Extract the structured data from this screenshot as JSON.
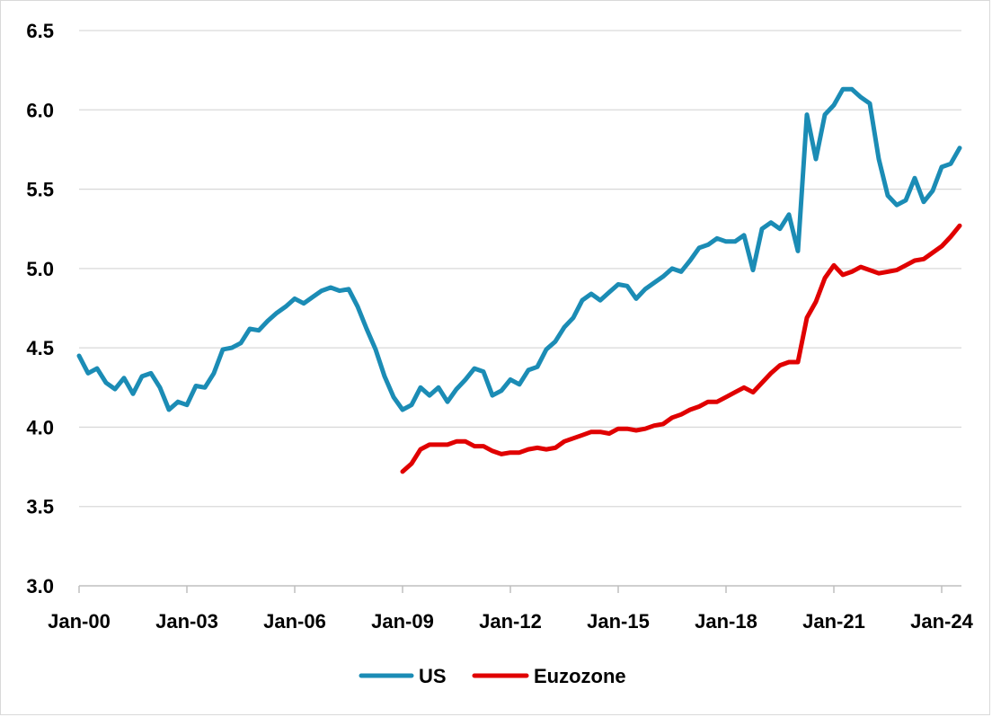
{
  "chart_data": {
    "type": "line",
    "title": "",
    "xlabel": "",
    "ylabel": "",
    "ylim": [
      3.0,
      6.5
    ],
    "yticks": [
      "3.0",
      "3.5",
      "4.0",
      "4.5",
      "5.0",
      "5.5",
      "6.0",
      "6.5"
    ],
    "xtick_labels": [
      "Jan-00",
      "Jan-03",
      "Jan-06",
      "Jan-09",
      "Jan-12",
      "Jan-15",
      "Jan-18",
      "Jan-21",
      "Jan-24"
    ],
    "x_unit": "quarter",
    "grid": "horizontal",
    "legend_position": "bottom",
    "x_start": "2000-Q1",
    "series": [
      {
        "name": "US",
        "color": "#1b8cb5",
        "values": [
          4.45,
          4.34,
          4.37,
          4.28,
          4.24,
          4.31,
          4.21,
          4.32,
          4.34,
          4.25,
          4.11,
          4.16,
          4.14,
          4.26,
          4.25,
          4.34,
          4.49,
          4.5,
          4.53,
          4.62,
          4.61,
          4.67,
          4.72,
          4.76,
          4.81,
          4.78,
          4.82,
          4.86,
          4.88,
          4.86,
          4.87,
          4.76,
          4.62,
          4.49,
          4.32,
          4.19,
          4.11,
          4.14,
          4.25,
          4.2,
          4.25,
          4.16,
          4.24,
          4.3,
          4.37,
          4.35,
          4.2,
          4.23,
          4.3,
          4.27,
          4.36,
          4.38,
          4.49,
          4.54,
          4.63,
          4.69,
          4.8,
          4.84,
          4.8,
          4.85,
          4.9,
          4.89,
          4.81,
          4.87,
          4.91,
          4.95,
          5.0,
          4.98,
          5.05,
          5.13,
          5.15,
          5.19,
          5.17,
          5.17,
          5.21,
          4.99,
          5.25,
          5.29,
          5.25,
          5.34,
          5.11,
          5.97,
          5.69,
          5.97,
          6.03,
          6.13,
          6.13,
          6.08,
          6.04,
          5.69,
          5.46,
          5.4,
          5.43,
          5.57,
          5.42,
          5.49,
          5.64,
          5.66,
          5.76
        ]
      },
      {
        "name": "Euzozone",
        "color": "#e00000",
        "start_index": 36,
        "values": [
          3.72,
          3.77,
          3.86,
          3.89,
          3.89,
          3.89,
          3.91,
          3.91,
          3.88,
          3.88,
          3.85,
          3.83,
          3.84,
          3.84,
          3.86,
          3.87,
          3.86,
          3.87,
          3.91,
          3.93,
          3.95,
          3.97,
          3.97,
          3.96,
          3.99,
          3.99,
          3.98,
          3.99,
          4.01,
          4.02,
          4.06,
          4.08,
          4.11,
          4.13,
          4.16,
          4.16,
          4.19,
          4.22,
          4.25,
          4.22,
          4.28,
          4.34,
          4.39,
          4.41,
          4.41,
          4.69,
          4.79,
          4.94,
          5.02,
          4.96,
          4.98,
          5.01,
          4.99,
          4.97,
          4.98,
          4.99,
          5.02,
          5.05,
          5.06,
          5.1,
          5.14,
          5.2,
          5.27
        ]
      }
    ]
  }
}
